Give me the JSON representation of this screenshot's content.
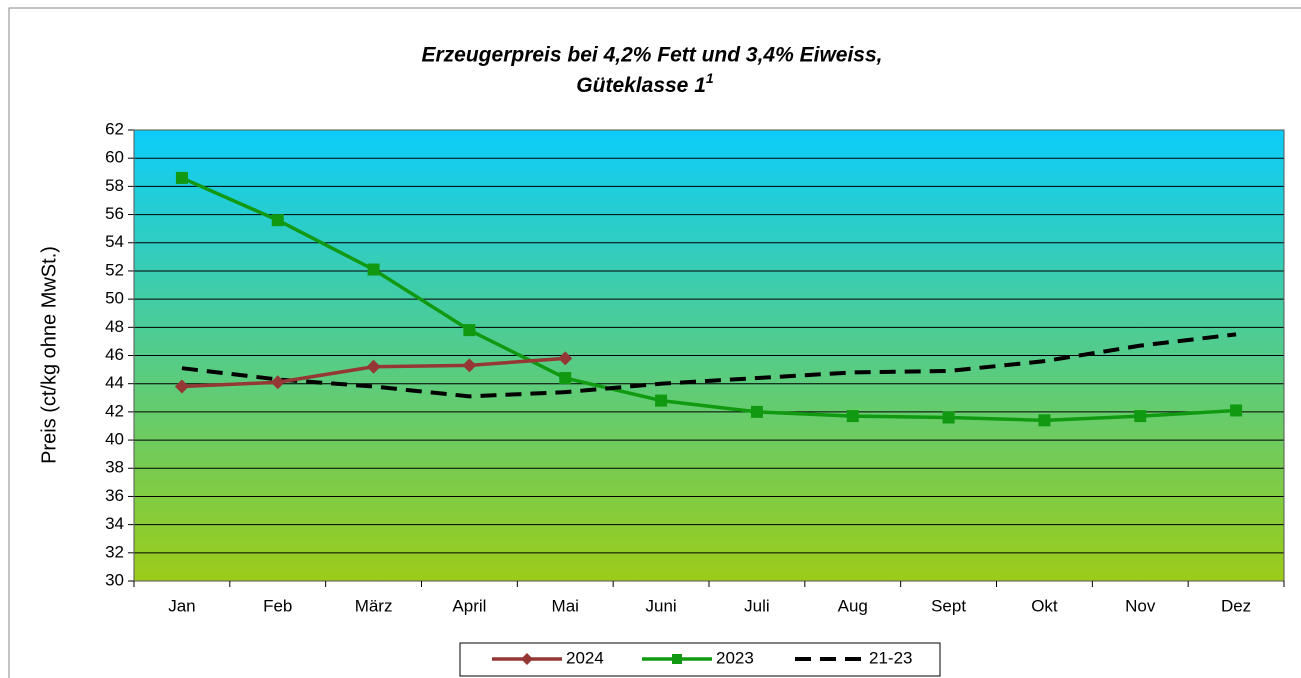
{
  "chart_data": {
    "type": "line",
    "title": [
      "Erzeugerpreis bei 4,2% Fett und 3,4% Eiweiss,",
      "Güteklasse 1"
    ],
    "title_superscript": "1",
    "y_label": "Preis (ct/kg ohne MwSt.)",
    "categories": [
      "Jan",
      "Feb",
      "März",
      "April",
      "Mai",
      "Juni",
      "Juli",
      "Aug",
      "Sept",
      "Okt",
      "Nov",
      "Dez"
    ],
    "series": [
      {
        "name": "2024",
        "color": "#953735",
        "marker": "diamond",
        "dashed": false,
        "values": [
          43.8,
          44.1,
          45.2,
          45.3,
          45.8,
          null,
          null,
          null,
          null,
          null,
          null,
          null
        ]
      },
      {
        "name": "2023",
        "color": "#119911",
        "marker": "square",
        "dashed": false,
        "values": [
          58.6,
          55.6,
          52.1,
          47.8,
          44.4,
          42.8,
          42.0,
          41.7,
          41.6,
          41.4,
          41.7,
          42.1
        ]
      },
      {
        "name": "21-23",
        "color": "#000000",
        "marker": "none",
        "dashed": true,
        "values": [
          45.1,
          44.3,
          43.8,
          43.1,
          43.4,
          44.0,
          44.4,
          44.8,
          44.9,
          45.6,
          46.7,
          47.5
        ]
      }
    ],
    "ylim": [
      30,
      62
    ],
    "yticks": [
      30,
      32,
      34,
      36,
      38,
      40,
      42,
      44,
      46,
      48,
      50,
      52,
      54,
      56,
      58,
      60,
      62
    ],
    "grid": true,
    "legend": "bottom",
    "background_gradient": [
      "#0ccdfa",
      "#9ccc18"
    ]
  }
}
